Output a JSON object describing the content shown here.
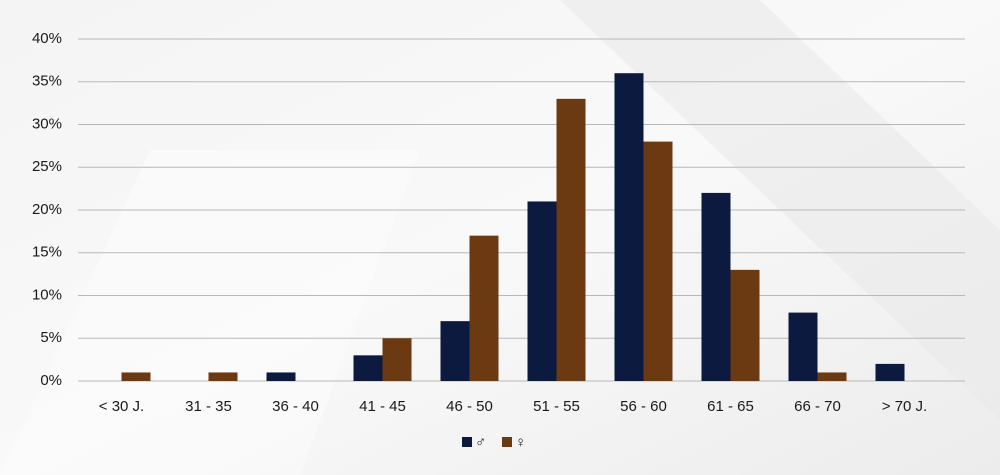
{
  "chart_data": {
    "type": "bar",
    "categories": [
      "< 30 J.",
      "31 - 35",
      "36 - 40",
      "41 - 45",
      "46 - 50",
      "51 - 55",
      "56 - 60",
      "61 - 65",
      "66 - 70",
      "> 70 J."
    ],
    "series": [
      {
        "name": "♂",
        "color": "#0d1a3f",
        "values": [
          0,
          0,
          1,
          3,
          7,
          21,
          36,
          22,
          8,
          2
        ]
      },
      {
        "name": "♀",
        "color": "#6b3a12",
        "values": [
          1,
          1,
          0,
          5,
          17,
          33,
          28,
          13,
          1,
          0
        ]
      }
    ],
    "ylim": [
      0,
      40
    ],
    "yticks": [
      {
        "value": 0,
        "label": "0%"
      },
      {
        "value": 5,
        "label": "5%"
      },
      {
        "value": 10,
        "label": "10%"
      },
      {
        "value": 15,
        "label": "15%"
      },
      {
        "value": 20,
        "label": "20%"
      },
      {
        "value": 25,
        "label": "25%"
      },
      {
        "value": 30,
        "label": "30%"
      },
      {
        "value": 35,
        "label": "35%"
      },
      {
        "value": 40,
        "label": "40%"
      }
    ],
    "grid": true,
    "legend": "bottom"
  }
}
